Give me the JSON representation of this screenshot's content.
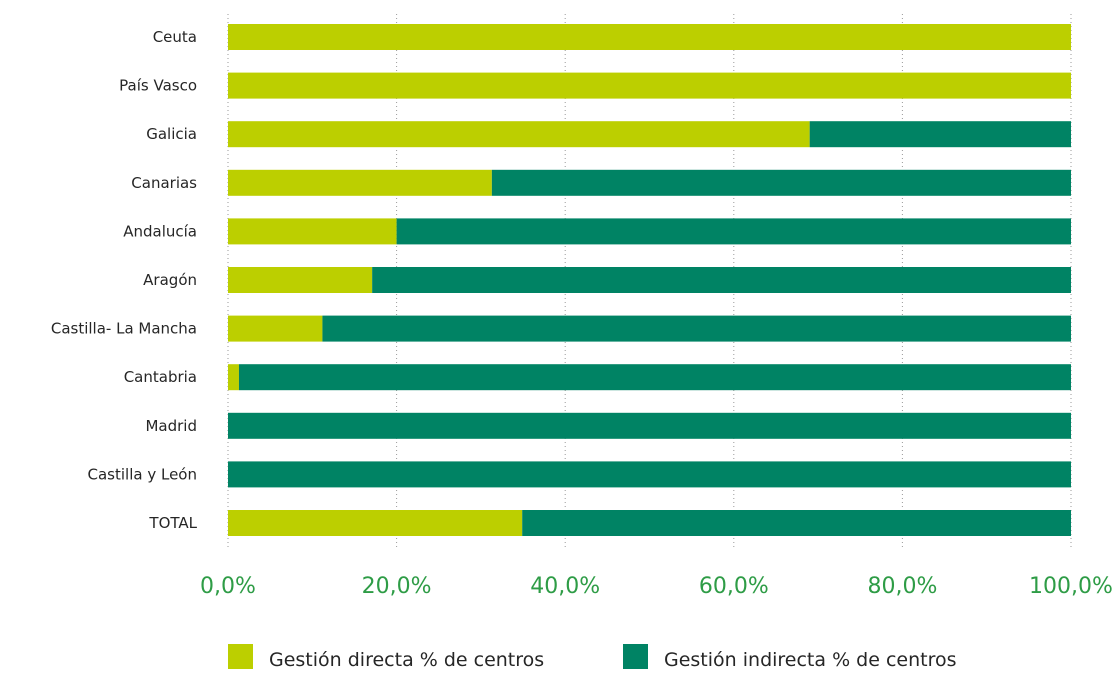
{
  "chart_data": {
    "type": "bar",
    "orientation": "horizontal",
    "stacked": true,
    "categories": [
      "Ceuta",
      "País Vasco",
      "Galicia",
      "Canarias",
      "Andalucía",
      "Aragón",
      "Castilla- La Mancha",
      "Cantabria",
      "Madrid",
      "Castilla y León",
      "TOTAL"
    ],
    "series": [
      {
        "name": "Gestión directa % de centros",
        "color": "#bccf00",
        "values": [
          100.0,
          100.0,
          69.0,
          31.3,
          20.0,
          17.1,
          11.2,
          1.3,
          0.0,
          0.0,
          34.9
        ]
      },
      {
        "name": "Gestión indirecta % de centros",
        "color": "#008364",
        "values": [
          0.0,
          0.0,
          31.0,
          68.7,
          80.0,
          82.9,
          88.8,
          98.7,
          100.0,
          100.0,
          65.1
        ]
      }
    ],
    "xlim": [
      0,
      100
    ],
    "x_ticks": [
      0,
      20,
      40,
      60,
      80,
      100
    ],
    "x_tick_labels": [
      "0,0%",
      "20,0%",
      "40,0%",
      "60,0%",
      "80,0%",
      "100,0%"
    ],
    "tick_label_color": "#2e9c46",
    "grid": true,
    "legend_position": "bottom",
    "title": "",
    "xlabel": "",
    "ylabel": ""
  }
}
